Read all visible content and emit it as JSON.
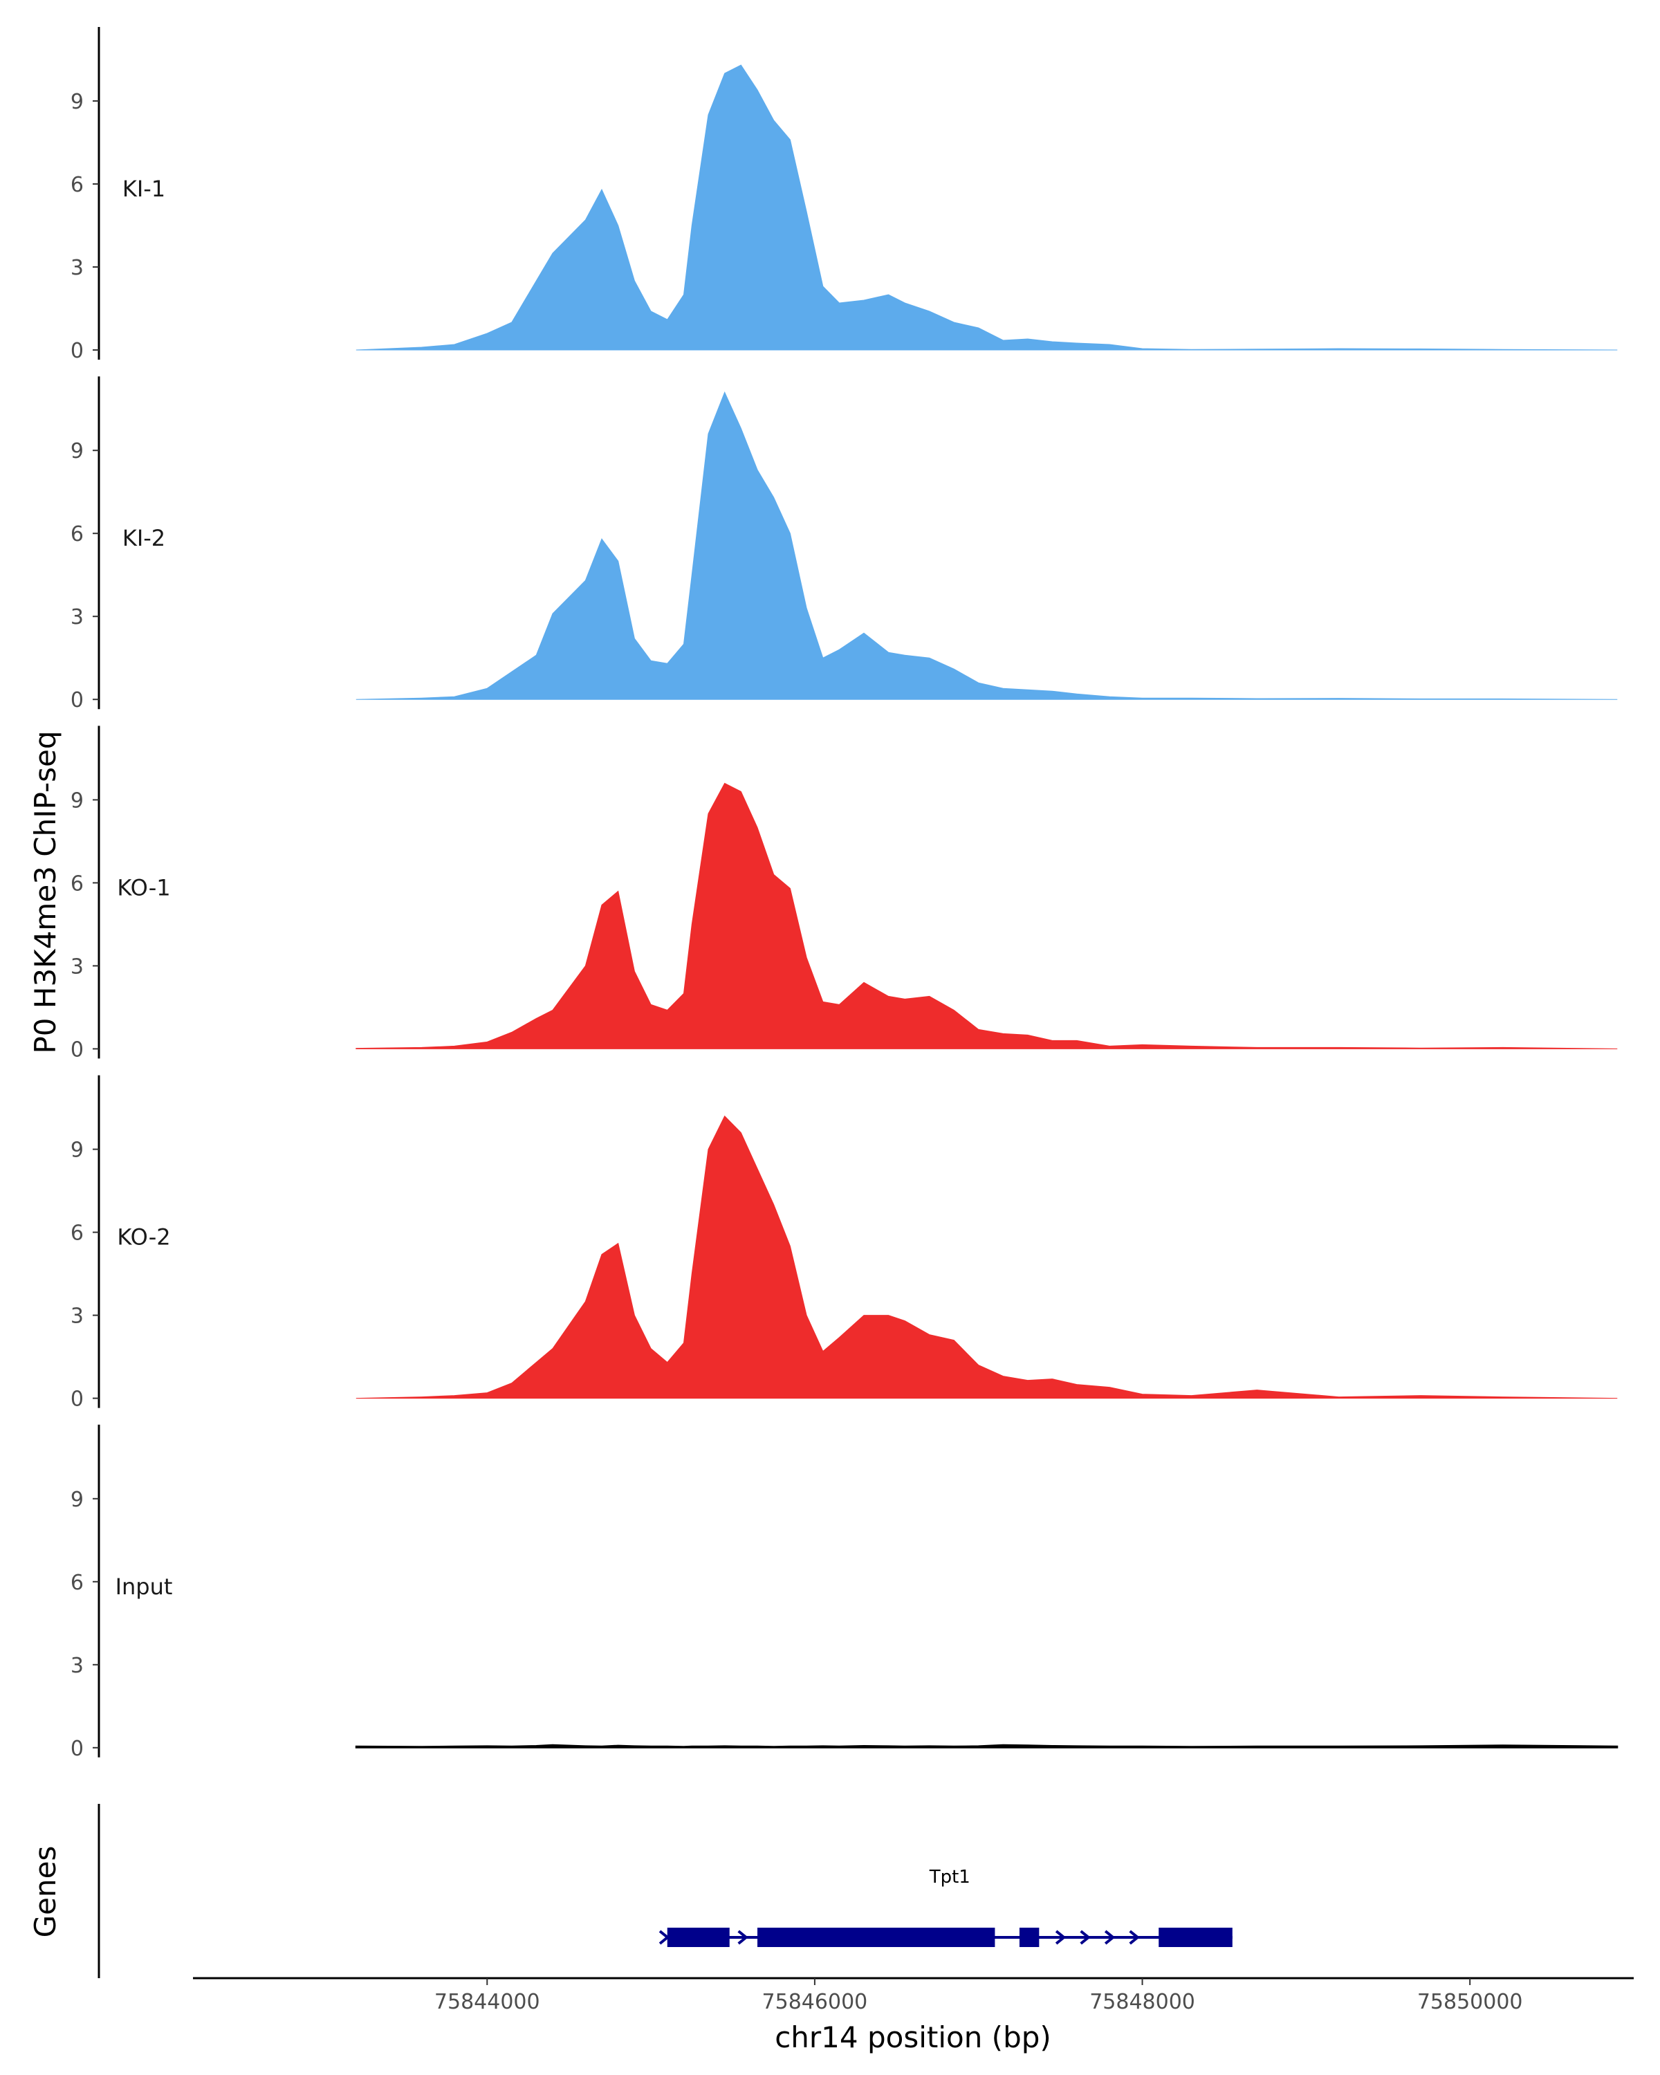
{
  "chart_data": {
    "type": "area",
    "ylabel": "P0 H3K4me3 ChIP-seq",
    "xlabel": "chr14 position (bp)",
    "genes_label": "Genes",
    "xlim": [
      75842200,
      75851000
    ],
    "ylim": [
      0,
      11.6
    ],
    "yticks": [
      "0",
      "3",
      "6",
      "9"
    ],
    "xticks": [
      "75844000",
      "75846000",
      "75848000",
      "75850000"
    ],
    "colors": {
      "KI": "#5DABEC",
      "KO": "#EE2C2C",
      "Input": "#000000",
      "gene": "#00008B",
      "axis": "#000000"
    },
    "x": [
      75843200,
      75843600,
      75843800,
      75844000,
      75844150,
      75844300,
      75844400,
      75844600,
      75844700,
      75844800,
      75844900,
      75845000,
      75845100,
      75845200,
      75845250,
      75845350,
      75845450,
      75845550,
      75845650,
      75845750,
      75845850,
      75845950,
      75846050,
      75846150,
      75846300,
      75846450,
      75846550,
      75846700,
      75846850,
      75847000,
      75847150,
      75847300,
      75847450,
      75847600,
      75847800,
      75848000,
      75848300,
      75848700,
      75849200,
      75849700,
      75850200,
      75850900
    ],
    "series": [
      {
        "name": "KI-1",
        "values": [
          0.0,
          0.1,
          0.2,
          0.6,
          1.0,
          2.5,
          3.5,
          4.7,
          5.8,
          4.5,
          2.5,
          1.4,
          1.1,
          2.0,
          4.5,
          8.5,
          10.0,
          10.3,
          9.4,
          8.3,
          7.6,
          5.0,
          2.3,
          1.7,
          1.8,
          2.0,
          1.7,
          1.4,
          1.0,
          0.8,
          0.35,
          0.4,
          0.3,
          0.25,
          0.2,
          0.05,
          0.02,
          0.03,
          0.05,
          0.04,
          0.02,
          0.0
        ]
      },
      {
        "name": "KI-2",
        "values": [
          0.0,
          0.05,
          0.1,
          0.4,
          1.0,
          1.6,
          3.1,
          4.3,
          5.8,
          5.0,
          2.2,
          1.4,
          1.3,
          2.0,
          4.5,
          9.6,
          11.1,
          9.8,
          8.3,
          7.3,
          6.0,
          3.3,
          1.5,
          1.8,
          2.4,
          1.7,
          1.6,
          1.5,
          1.1,
          0.6,
          0.4,
          0.35,
          0.3,
          0.2,
          0.1,
          0.05,
          0.05,
          0.03,
          0.04,
          0.02,
          0.02,
          0.0
        ]
      },
      {
        "name": "KO-1",
        "values": [
          0.02,
          0.05,
          0.1,
          0.25,
          0.6,
          1.1,
          1.4,
          3.0,
          5.2,
          5.7,
          2.8,
          1.6,
          1.4,
          2.0,
          4.5,
          8.5,
          9.6,
          9.3,
          8.0,
          6.3,
          5.8,
          3.3,
          1.7,
          1.6,
          2.4,
          1.9,
          1.8,
          1.9,
          1.4,
          0.7,
          0.55,
          0.5,
          0.3,
          0.3,
          0.1,
          0.15,
          0.1,
          0.05,
          0.05,
          0.03,
          0.05,
          0.0
        ]
      },
      {
        "name": "KO-2",
        "values": [
          0.0,
          0.05,
          0.1,
          0.2,
          0.55,
          1.3,
          1.8,
          3.5,
          5.2,
          5.6,
          3.0,
          1.8,
          1.3,
          2.0,
          4.5,
          9.0,
          10.2,
          9.6,
          8.3,
          7.0,
          5.5,
          3.0,
          1.7,
          2.2,
          3.0,
          3.0,
          2.8,
          2.3,
          2.1,
          1.2,
          0.8,
          0.65,
          0.7,
          0.5,
          0.4,
          0.15,
          0.1,
          0.3,
          0.05,
          0.1,
          0.05,
          0.0
        ]
      },
      {
        "name": "Input",
        "values": [
          0.05,
          0.04,
          0.05,
          0.06,
          0.05,
          0.07,
          0.1,
          0.06,
          0.05,
          0.08,
          0.06,
          0.05,
          0.05,
          0.04,
          0.05,
          0.05,
          0.06,
          0.05,
          0.05,
          0.04,
          0.05,
          0.05,
          0.06,
          0.05,
          0.07,
          0.06,
          0.05,
          0.06,
          0.05,
          0.06,
          0.1,
          0.09,
          0.07,
          0.06,
          0.05,
          0.05,
          0.04,
          0.05,
          0.05,
          0.06,
          0.09,
          0.05
        ]
      }
    ],
    "genes": [
      {
        "name": "Tpt1",
        "start": 75845100,
        "end": 75848550,
        "exons": [
          [
            75845100,
            75845480
          ],
          [
            75845650,
            75847100
          ],
          [
            75847250,
            75847370
          ],
          [
            75848100,
            75848550
          ]
        ],
        "intron_arrow_positions": [
          75845080,
          75845560,
          75847500,
          75847650,
          75847800,
          75847950
        ]
      }
    ]
  }
}
